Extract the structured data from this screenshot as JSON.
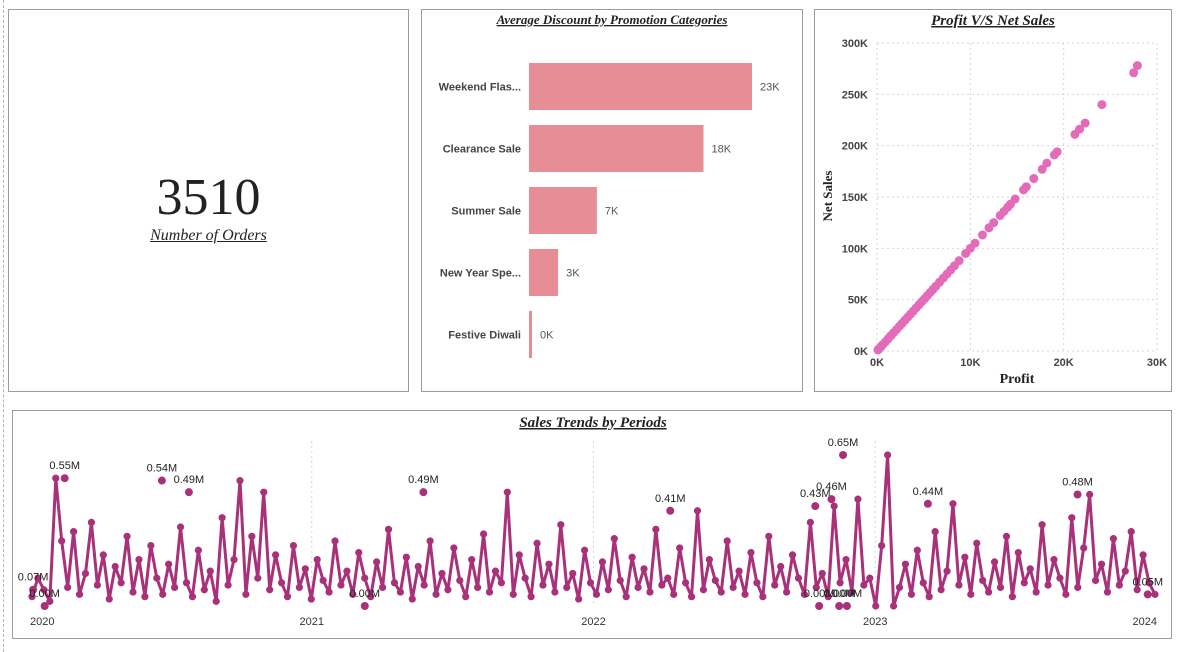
{
  "kpi_card": {
    "value": "3510",
    "label": "Number of Orders"
  },
  "colors": {
    "bar": "#e68d95",
    "scatter": "#e46bb9",
    "line": "#a8317a",
    "grid": "#d6d6d6",
    "panel_border": "#9c9c9c"
  },
  "chart_data": [
    {
      "type": "bar",
      "orientation": "horizontal",
      "title": "Average Discount by Promotion Categories",
      "categories": [
        "Weekend Flas...",
        "Clearance Sale",
        "Summer Sale",
        "New Year Spe...",
        "Festive Diwali"
      ],
      "values": [
        23000,
        18000,
        7000,
        3000,
        100
      ],
      "data_labels": [
        "23K",
        "18K",
        "7K",
        "3K",
        "0K"
      ],
      "xlim": [
        0,
        23000
      ],
      "grid": false
    },
    {
      "type": "scatter",
      "title": "Profit V/S Net Sales",
      "xlabel": "Profit",
      "ylabel": "Net Sales",
      "xlim": [
        0,
        30000
      ],
      "ylim": [
        0,
        300000
      ],
      "x_ticks": [
        "0K",
        "10K",
        "20K",
        "30K"
      ],
      "y_ticks": [
        "0K",
        "50K",
        "100K",
        "150K",
        "200K",
        "250K",
        "300K"
      ],
      "grid": true,
      "points": [
        [
          27900,
          278000
        ],
        [
          27500,
          271000
        ],
        [
          24100,
          240000
        ],
        [
          22300,
          222000
        ],
        [
          21700,
          216000
        ],
        [
          21200,
          211000
        ],
        [
          19300,
          194000
        ],
        [
          19000,
          191000
        ],
        [
          18200,
          183000
        ],
        [
          17700,
          177000
        ],
        [
          16800,
          168000
        ],
        [
          16000,
          160000
        ],
        [
          15700,
          157000
        ],
        [
          14800,
          148000
        ],
        [
          14300,
          143000
        ],
        [
          14000,
          140000
        ],
        [
          13600,
          136000
        ],
        [
          13200,
          132000
        ],
        [
          12500,
          125000
        ],
        [
          12000,
          120000
        ],
        [
          11300,
          113000
        ],
        [
          10500,
          105000
        ],
        [
          10000,
          100000
        ],
        [
          9500,
          95000
        ],
        [
          8800,
          88000
        ],
        [
          8300,
          83000
        ],
        [
          7900,
          79000
        ],
        [
          7500,
          75000
        ],
        [
          7100,
          71000
        ],
        [
          6700,
          67000
        ],
        [
          6300,
          63000
        ],
        [
          6000,
          60000
        ],
        [
          5700,
          57000
        ],
        [
          5400,
          54000
        ],
        [
          5100,
          51000
        ],
        [
          4800,
          48000
        ],
        [
          4500,
          45000
        ],
        [
          4200,
          42000
        ],
        [
          3900,
          39000
        ],
        [
          3600,
          36000
        ],
        [
          3300,
          33000
        ],
        [
          3000,
          30000
        ],
        [
          2700,
          27000
        ],
        [
          2400,
          24000
        ],
        [
          2100,
          21000
        ],
        [
          1800,
          18000
        ],
        [
          1500,
          15000
        ],
        [
          1200,
          12000
        ],
        [
          900,
          9000
        ],
        [
          600,
          6000
        ],
        [
          400,
          4000
        ],
        [
          200,
          2000
        ],
        [
          100,
          1000
        ]
      ]
    },
    {
      "type": "line",
      "title": "Sales Trends by Periods",
      "x_ticks": [
        "2020",
        "2021",
        "2022",
        "2023",
        "2024"
      ],
      "xlim": [
        "2020-01-01",
        "2024-01-01"
      ],
      "ylim": [
        0,
        0.65
      ],
      "unit": "M",
      "grid": false,
      "annotations": [
        {
          "date": "2020-02-15",
          "value": 0.55,
          "label": "0.55M"
        },
        {
          "date": "2020-01-05",
          "value": 0.07,
          "label": "0.07M"
        },
        {
          "date": "2020-01-20",
          "value": 0.0,
          "label": "0.00M"
        },
        {
          "date": "2020-06-20",
          "value": 0.54,
          "label": "0.54M"
        },
        {
          "date": "2020-07-25",
          "value": 0.49,
          "label": "0.49M"
        },
        {
          "date": "2021-05-25",
          "value": 0.49,
          "label": "0.49M"
        },
        {
          "date": "2021-03-10",
          "value": 0.0,
          "label": "0.00M"
        },
        {
          "date": "2022-04-10",
          "value": 0.41,
          "label": "0.41M"
        },
        {
          "date": "2022-10-15",
          "value": 0.43,
          "label": "0.43M"
        },
        {
          "date": "2022-11-05",
          "value": 0.46,
          "label": "0.46M"
        },
        {
          "date": "2022-10-20",
          "value": 0.0,
          "label": "0.00M"
        },
        {
          "date": "2022-11-20",
          "value": 0.65,
          "label": "0.65M"
        },
        {
          "date": "2022-11-25",
          "value": 0.0,
          "label": "0.00M"
        },
        {
          "date": "2022-11-15",
          "value": 0.0,
          "label": "0.00M"
        },
        {
          "date": "2023-03-10",
          "value": 0.44,
          "label": "0.44M"
        },
        {
          "date": "2023-09-20",
          "value": 0.48,
          "label": "0.48M"
        },
        {
          "date": "2023-12-20",
          "value": 0.05,
          "label": "0.05M"
        }
      ],
      "values_M": [
        0.04,
        0.12,
        0.07,
        0.02,
        0.55,
        0.28,
        0.08,
        0.32,
        0.05,
        0.14,
        0.36,
        0.09,
        0.22,
        0.03,
        0.17,
        0.1,
        0.3,
        0.06,
        0.2,
        0.04,
        0.26,
        0.12,
        0.05,
        0.18,
        0.08,
        0.34,
        0.1,
        0.04,
        0.24,
        0.07,
        0.15,
        0.02,
        0.38,
        0.09,
        0.2,
        0.54,
        0.05,
        0.3,
        0.12,
        0.49,
        0.07,
        0.22,
        0.1,
        0.04,
        0.26,
        0.08,
        0.16,
        0.03,
        0.2,
        0.11,
        0.06,
        0.28,
        0.09,
        0.15,
        0.05,
        0.23,
        0.12,
        0.04,
        0.19,
        0.08,
        0.33,
        0.1,
        0.06,
        0.21,
        0.03,
        0.17,
        0.09,
        0.28,
        0.05,
        0.14,
        0.07,
        0.25,
        0.11,
        0.04,
        0.2,
        0.08,
        0.31,
        0.06,
        0.15,
        0.1,
        0.49,
        0.05,
        0.22,
        0.12,
        0.04,
        0.27,
        0.09,
        0.18,
        0.06,
        0.35,
        0.08,
        0.14,
        0.03,
        0.24,
        0.1,
        0.05,
        0.19,
        0.07,
        0.29,
        0.11,
        0.04,
        0.21,
        0.08,
        0.16,
        0.06,
        0.33,
        0.09,
        0.12,
        0.05,
        0.25,
        0.1,
        0.04,
        0.41,
        0.07,
        0.2,
        0.11,
        0.06,
        0.28,
        0.08,
        0.15,
        0.05,
        0.23,
        0.1,
        0.04,
        0.3,
        0.09,
        0.17,
        0.06,
        0.22,
        0.12,
        0.05,
        0.36,
        0.08,
        0.14,
        0.04,
        0.43,
        0.1,
        0.2,
        0.06,
        0.46,
        0.09,
        0.12,
        0.0,
        0.26,
        0.65,
        0.0,
        0.08,
        0.18,
        0.05,
        0.24,
        0.1,
        0.04,
        0.32,
        0.07,
        0.15,
        0.44,
        0.09,
        0.21,
        0.05,
        0.27,
        0.11,
        0.06,
        0.19,
        0.08,
        0.3,
        0.04,
        0.23,
        0.1,
        0.16,
        0.06,
        0.35,
        0.09,
        0.2,
        0.12,
        0.05,
        0.38,
        0.08,
        0.25,
        0.48,
        0.11,
        0.18,
        0.06,
        0.29,
        0.09,
        0.15,
        0.32,
        0.07,
        0.22,
        0.1,
        0.05
      ]
    }
  ]
}
